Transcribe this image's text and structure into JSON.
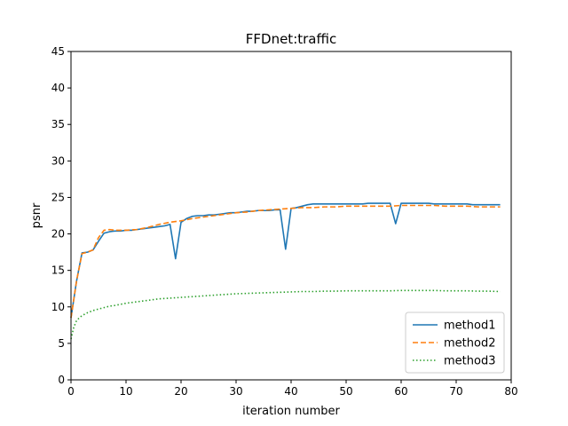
{
  "chart_data": {
    "type": "line",
    "title": "FFDnet:traffic",
    "xlabel": "iteration number",
    "ylabel": "psnr",
    "xlim": [
      0,
      80
    ],
    "ylim": [
      0,
      45
    ],
    "xticks": [
      0,
      10,
      20,
      30,
      40,
      50,
      60,
      70,
      80
    ],
    "yticks": [
      0,
      5,
      10,
      15,
      20,
      25,
      30,
      35,
      40,
      45
    ],
    "grid": false,
    "legend_position": "lower-right",
    "series": [
      {
        "name": "method1",
        "color": "#1f77b4",
        "style": "solid",
        "x": [
          0,
          1,
          2,
          3,
          4,
          5,
          6,
          7,
          8,
          9,
          10,
          11,
          12,
          13,
          14,
          15,
          16,
          17,
          18,
          19,
          20,
          21,
          22,
          23,
          24,
          25,
          26,
          27,
          28,
          29,
          30,
          31,
          32,
          33,
          34,
          35,
          36,
          37,
          38,
          39,
          40,
          41,
          42,
          43,
          44,
          45,
          46,
          47,
          48,
          49,
          50,
          51,
          52,
          53,
          54,
          55,
          56,
          57,
          58,
          59,
          60,
          61,
          62,
          63,
          64,
          65,
          66,
          67,
          68,
          69,
          70,
          71,
          72,
          73,
          74,
          75,
          76,
          77,
          78
        ],
        "y": [
          8.5,
          13.5,
          17.4,
          17.5,
          17.8,
          19.0,
          20.1,
          20.3,
          20.4,
          20.4,
          20.5,
          20.5,
          20.6,
          20.7,
          20.8,
          20.9,
          21.0,
          21.1,
          21.3,
          16.6,
          21.6,
          22.1,
          22.4,
          22.5,
          22.5,
          22.6,
          22.6,
          22.7,
          22.8,
          22.9,
          22.9,
          23.0,
          23.1,
          23.1,
          23.2,
          23.2,
          23.2,
          23.3,
          23.3,
          17.9,
          23.5,
          23.6,
          23.8,
          24.0,
          24.1,
          24.1,
          24.1,
          24.1,
          24.1,
          24.1,
          24.1,
          24.1,
          24.1,
          24.1,
          24.2,
          24.2,
          24.2,
          24.2,
          24.2,
          21.4,
          24.2,
          24.2,
          24.2,
          24.2,
          24.2,
          24.2,
          24.1,
          24.1,
          24.1,
          24.1,
          24.1,
          24.1,
          24.1,
          24.0,
          24.0,
          24.0,
          24.0,
          24.0,
          24.0
        ]
      },
      {
        "name": "method2",
        "color": "#ff7f0e",
        "style": "dashed",
        "x": [
          0,
          1,
          2,
          3,
          4,
          5,
          6,
          7,
          8,
          9,
          10,
          12,
          14,
          16,
          18,
          20,
          22,
          24,
          26,
          28,
          30,
          32,
          34,
          36,
          38,
          40,
          42,
          44,
          46,
          48,
          50,
          52,
          54,
          56,
          58,
          60,
          62,
          64,
          66,
          68,
          70,
          72,
          74,
          76,
          78
        ],
        "y": [
          8.5,
          13.5,
          17.3,
          17.5,
          17.8,
          19.5,
          20.5,
          20.6,
          20.5,
          20.5,
          20.5,
          20.6,
          20.9,
          21.3,
          21.6,
          21.8,
          22.1,
          22.3,
          22.5,
          22.7,
          22.9,
          23.0,
          23.2,
          23.3,
          23.4,
          23.5,
          23.6,
          23.6,
          23.7,
          23.7,
          23.8,
          23.8,
          23.8,
          23.8,
          23.8,
          23.9,
          23.9,
          23.9,
          23.9,
          23.8,
          23.8,
          23.8,
          23.7,
          23.7,
          23.7
        ]
      },
      {
        "name": "method3",
        "color": "#2ca02c",
        "style": "dotted",
        "x": [
          0,
          0.5,
          1,
          1.5,
          2,
          3,
          4,
          5,
          6,
          7,
          8,
          10,
          12,
          14,
          16,
          18,
          20,
          22,
          24,
          26,
          28,
          30,
          32,
          34,
          36,
          38,
          40,
          42,
          44,
          46,
          48,
          50,
          52,
          54,
          56,
          58,
          60,
          62,
          64,
          66,
          68,
          70,
          72,
          74,
          76,
          78
        ],
        "y": [
          5.6,
          7.2,
          8.1,
          8.5,
          8.8,
          9.2,
          9.5,
          9.7,
          9.9,
          10.1,
          10.2,
          10.5,
          10.7,
          10.9,
          11.1,
          11.2,
          11.3,
          11.4,
          11.5,
          11.6,
          11.7,
          11.8,
          11.85,
          11.9,
          11.95,
          12.0,
          12.05,
          12.1,
          12.1,
          12.15,
          12.15,
          12.2,
          12.2,
          12.2,
          12.2,
          12.2,
          12.25,
          12.25,
          12.25,
          12.25,
          12.2,
          12.2,
          12.2,
          12.15,
          12.15,
          12.1
        ]
      }
    ]
  }
}
